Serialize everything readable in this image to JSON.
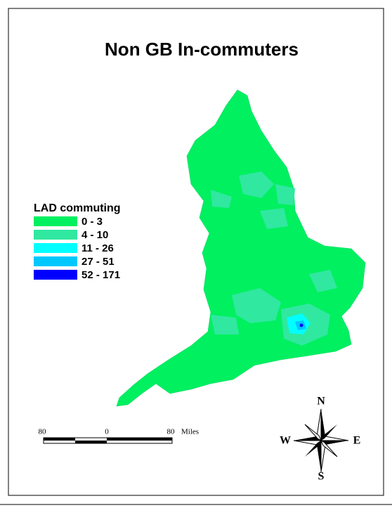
{
  "title": "Non GB In-commuters",
  "legend": {
    "title": "LAD commuting",
    "items": [
      {
        "label": "0 - 3",
        "color": "#00f060"
      },
      {
        "label": "4 - 10",
        "color": "#30e8a0"
      },
      {
        "label": "11 - 26",
        "color": "#00ffff"
      },
      {
        "label": "27 - 51",
        "color": "#00c8ff"
      },
      {
        "label": "52 - 171",
        "color": "#0000ff"
      }
    ]
  },
  "scale_bar": {
    "labels": [
      "80",
      "0",
      "80"
    ],
    "unit": "Miles"
  },
  "compass": {
    "north": "N",
    "south": "S",
    "east": "E",
    "west": "W"
  }
}
